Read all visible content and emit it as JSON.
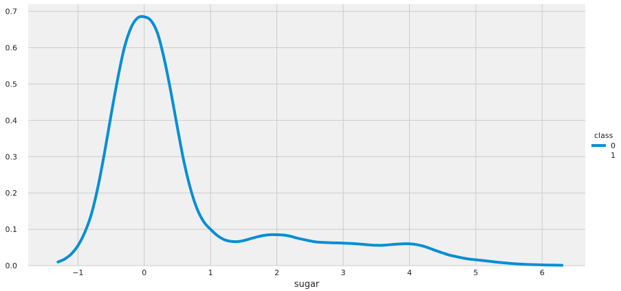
{
  "chart_data": {
    "type": "line",
    "title": "",
    "xlabel": "sugar",
    "ylabel": "",
    "xlim": [
      -1.75,
      6.65
    ],
    "ylim": [
      0,
      0.72
    ],
    "x_ticks": [
      -1,
      0,
      1,
      2,
      3,
      4,
      5,
      6
    ],
    "x_tick_labels": [
      "−1",
      "0",
      "1",
      "2",
      "3",
      "4",
      "5",
      "6"
    ],
    "y_ticks": [
      0.0,
      0.1,
      0.2,
      0.3,
      0.4,
      0.5,
      0.6,
      0.7
    ],
    "y_tick_labels": [
      "0.0",
      "0.1",
      "0.2",
      "0.3",
      "0.4",
      "0.5",
      "0.6",
      "0.7"
    ],
    "grid": true,
    "legend": {
      "title": "class",
      "placement": "right",
      "entries": [
        {
          "label": "0",
          "color": "#008fd5",
          "has_line": true
        },
        {
          "label": "1",
          "color": "#fc4f30",
          "has_line": false
        }
      ]
    },
    "series": [
      {
        "name": "0",
        "color": "#008fd5",
        "x": [
          -1.3,
          -1.2,
          -1.1,
          -1.0,
          -0.9,
          -0.8,
          -0.7,
          -0.6,
          -0.5,
          -0.4,
          -0.3,
          -0.2,
          -0.1,
          0.0,
          0.1,
          0.2,
          0.3,
          0.4,
          0.5,
          0.6,
          0.7,
          0.8,
          0.9,
          1.0,
          1.1,
          1.2,
          1.3,
          1.4,
          1.5,
          1.6,
          1.7,
          1.8,
          1.9,
          2.0,
          2.1,
          2.2,
          2.3,
          2.4,
          2.5,
          2.6,
          2.8,
          3.0,
          3.2,
          3.4,
          3.5,
          3.6,
          3.8,
          3.9,
          4.0,
          4.1,
          4.2,
          4.3,
          4.4,
          4.5,
          4.6,
          4.7,
          4.8,
          4.9,
          5.0,
          5.2,
          5.4,
          5.6,
          5.8,
          6.0,
          6.3
        ],
        "y": [
          0.01,
          0.018,
          0.032,
          0.055,
          0.09,
          0.14,
          0.215,
          0.31,
          0.415,
          0.515,
          0.6,
          0.655,
          0.682,
          0.685,
          0.675,
          0.64,
          0.57,
          0.48,
          0.38,
          0.285,
          0.21,
          0.155,
          0.12,
          0.1,
          0.083,
          0.072,
          0.067,
          0.066,
          0.069,
          0.074,
          0.079,
          0.083,
          0.085,
          0.085,
          0.084,
          0.081,
          0.076,
          0.072,
          0.068,
          0.065,
          0.063,
          0.062,
          0.06,
          0.057,
          0.056,
          0.056,
          0.059,
          0.06,
          0.06,
          0.058,
          0.054,
          0.048,
          0.041,
          0.035,
          0.029,
          0.025,
          0.021,
          0.018,
          0.016,
          0.012,
          0.008,
          0.005,
          0.003,
          0.002,
          0.001
        ]
      }
    ]
  }
}
